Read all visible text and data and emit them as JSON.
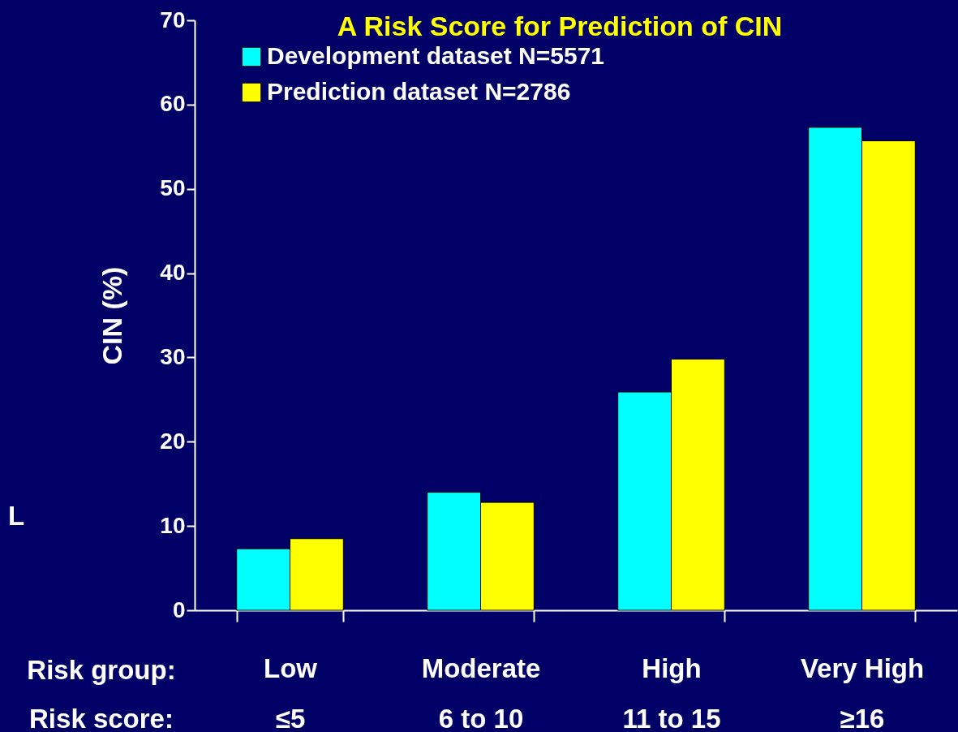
{
  "chart_data": {
    "type": "bar",
    "title": "A Risk Score for Prediction of CIN",
    "ylabel": "CIN (%)",
    "categories": [
      "Low\n≤5",
      "Moderate\n6 to 10",
      "High\n11 to 15",
      "Very High\n≥16"
    ],
    "series": [
      {
        "name": "Development dataset  N=5571",
        "color": "#00ffff",
        "values": [
          7.3,
          14.0,
          25.9,
          57.3
        ]
      },
      {
        "name": "Prediction dataset  N=2786",
        "color": "#ffff00",
        "values": [
          8.5,
          12.8,
          29.8,
          55.7
        ]
      }
    ],
    "ylim": [
      0,
      70
    ],
    "yticks": [
      0,
      10,
      20,
      30,
      40,
      50,
      60,
      70
    ],
    "legend": "top left",
    "annotations": [
      "Risk group:",
      "Risk score:",
      "L"
    ]
  }
}
